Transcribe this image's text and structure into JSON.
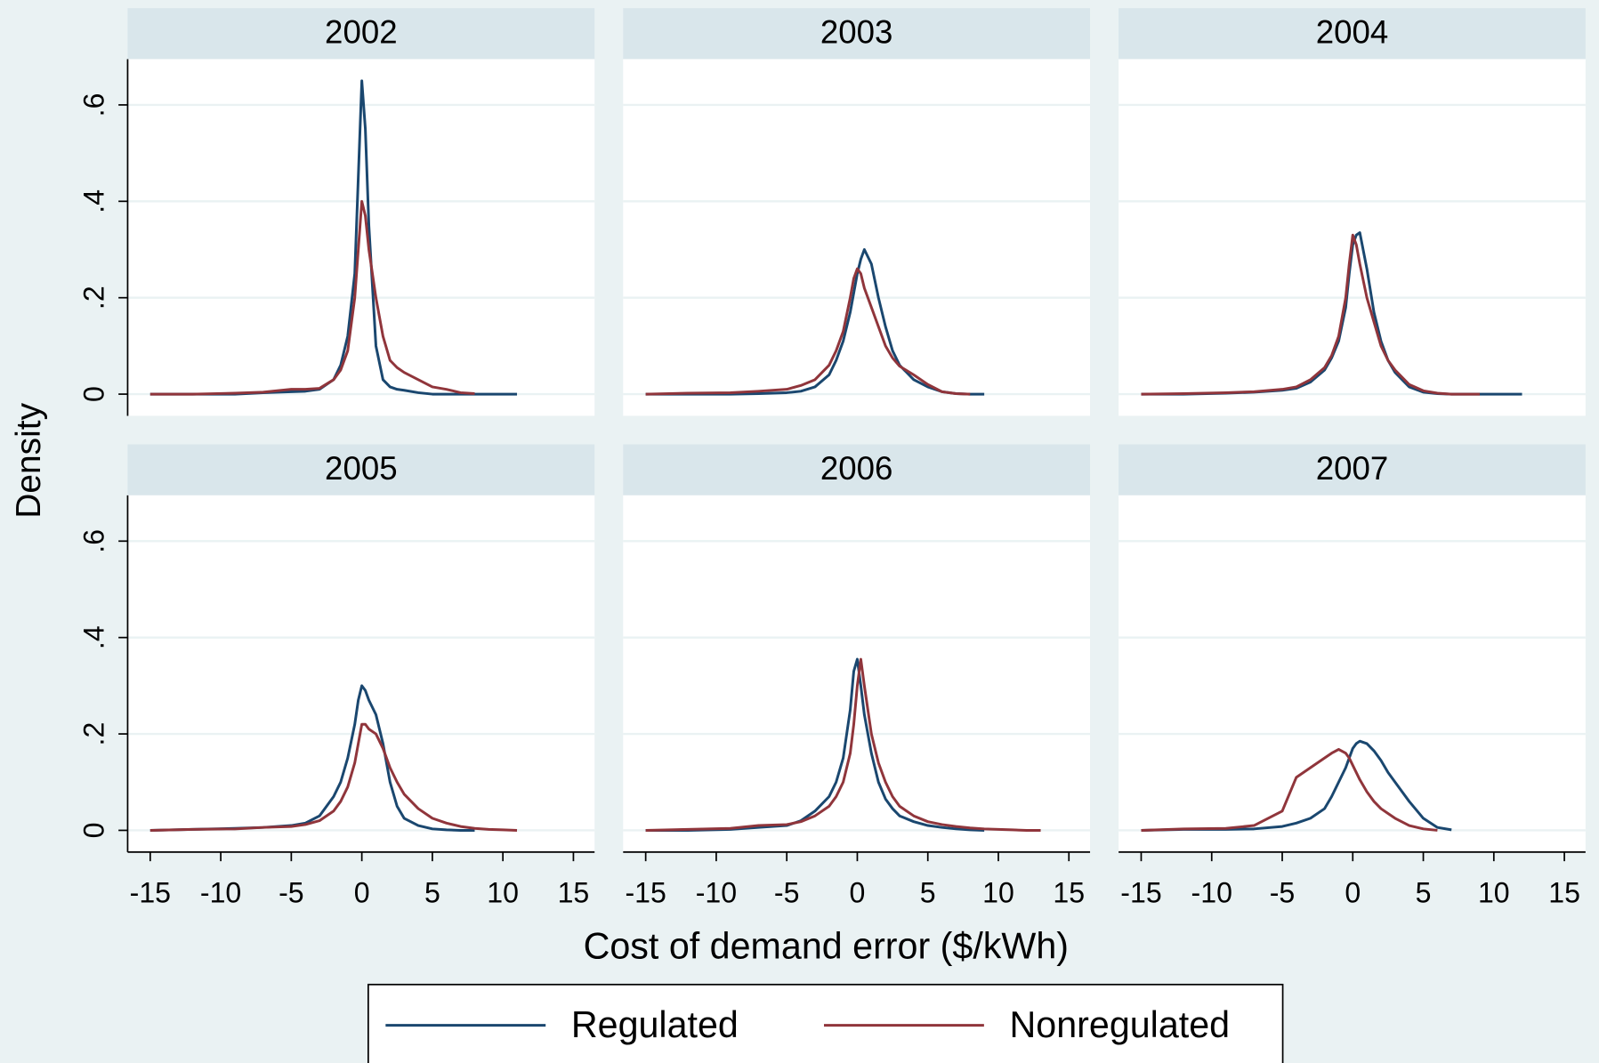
{
  "chart_data": {
    "type": "line",
    "x_label": "Cost of demand error ($/kWh)",
    "y_label": "Density",
    "legend": "bottom",
    "grid": true,
    "xlim": [
      -16.6,
      16.5
    ],
    "ylim": [
      -0.045,
      0.695
    ],
    "xticks": [
      -15,
      -10,
      -5,
      0,
      5,
      10,
      15
    ],
    "yticks": [
      0,
      {
        "value": 0.2,
        "label": ".2"
      },
      {
        "value": 0.4,
        "label": ".4"
      },
      {
        "value": 0.6,
        "label": ".6"
      }
    ],
    "series": [
      {
        "name": "Regulated",
        "color": "#1a476f"
      },
      {
        "name": "Nonregulated",
        "color": "#90353b"
      }
    ],
    "x": [
      -15,
      -12,
      -9,
      -7,
      -5,
      -4,
      -3,
      -2,
      -1.5,
      -1,
      -0.5,
      -0.25,
      0,
      0.25,
      0.5,
      1,
      1.5,
      2,
      2.5,
      3,
      4,
      5,
      6,
      7,
      8,
      9,
      10,
      11,
      12,
      13
    ],
    "panels": [
      {
        "title": "2002",
        "series": [
          {
            "values": [
              0,
              0,
              0,
              0.003,
              0.005,
              0.006,
              0.01,
              0.03,
              0.06,
              0.12,
              0.25,
              0.45,
              0.65,
              0.55,
              0.35,
              0.1,
              0.03,
              0.015,
              0.01,
              0.008,
              0.003,
              0,
              0,
              0,
              0,
              0,
              0,
              0,
              null,
              null
            ]
          },
          {
            "values": [
              0,
              0,
              0.002,
              0.004,
              0.01,
              0.01,
              0.012,
              0.03,
              0.05,
              0.09,
              0.2,
              0.3,
              0.4,
              0.37,
              0.3,
              0.2,
              0.12,
              0.07,
              0.055,
              0.045,
              0.03,
              0.015,
              0.01,
              0.003,
              0.001,
              null,
              null,
              null,
              null,
              null
            ]
          }
        ]
      },
      {
        "title": "2003",
        "series": [
          {
            "values": [
              0,
              0,
              0,
              0.001,
              0.003,
              0.006,
              0.015,
              0.04,
              0.07,
              0.11,
              0.17,
              0.21,
              0.25,
              0.28,
              0.3,
              0.27,
              0.2,
              0.14,
              0.09,
              0.06,
              0.03,
              0.015,
              0.005,
              0.001,
              0,
              0,
              null,
              null,
              null,
              null
            ]
          },
          {
            "values": [
              0,
              0.002,
              0.003,
              0.006,
              0.01,
              0.018,
              0.03,
              0.06,
              0.09,
              0.13,
              0.2,
              0.24,
              0.26,
              0.25,
              0.22,
              0.18,
              0.14,
              0.1,
              0.075,
              0.058,
              0.04,
              0.02,
              0.005,
              0.001,
              0,
              null,
              null,
              null,
              null,
              null
            ]
          }
        ]
      },
      {
        "title": "2004",
        "series": [
          {
            "values": [
              0,
              0,
              0.002,
              0.004,
              0.008,
              0.012,
              0.025,
              0.05,
              0.075,
              0.11,
              0.18,
              0.25,
              0.31,
              0.33,
              0.335,
              0.26,
              0.17,
              0.11,
              0.07,
              0.045,
              0.015,
              0.004,
              0.001,
              0,
              0,
              0,
              0,
              0,
              0,
              null
            ]
          },
          {
            "values": [
              0,
              0.001,
              0.003,
              0.005,
              0.01,
              0.015,
              0.03,
              0.055,
              0.08,
              0.12,
              0.2,
              0.27,
              0.33,
              0.31,
              0.27,
              0.2,
              0.15,
              0.1,
              0.07,
              0.05,
              0.02,
              0.007,
              0.002,
              0,
              0,
              0,
              null,
              null,
              null,
              null
            ]
          }
        ]
      },
      {
        "title": "2005",
        "series": [
          {
            "values": [
              0,
              0.002,
              0.004,
              0.006,
              0.01,
              0.015,
              0.03,
              0.07,
              0.1,
              0.15,
              0.22,
              0.27,
              0.3,
              0.29,
              0.27,
              0.24,
              0.18,
              0.1,
              0.05,
              0.025,
              0.01,
              0.003,
              0.001,
              0,
              0,
              null,
              null,
              null,
              null,
              null
            ]
          },
          {
            "values": [
              0,
              0.002,
              0.003,
              0.006,
              0.008,
              0.012,
              0.02,
              0.04,
              0.06,
              0.09,
              0.14,
              0.18,
              0.22,
              0.22,
              0.21,
              0.2,
              0.17,
              0.13,
              0.1,
              0.075,
              0.045,
              0.025,
              0.015,
              0.008,
              0.004,
              0.002,
              0.001,
              0,
              null,
              null
            ]
          }
        ]
      },
      {
        "title": "2006",
        "series": [
          {
            "values": [
              0,
              0,
              0.002,
              0.006,
              0.01,
              0.02,
              0.04,
              0.07,
              0.1,
              0.15,
              0.25,
              0.33,
              0.355,
              0.3,
              0.24,
              0.16,
              0.1,
              0.065,
              0.045,
              0.03,
              0.018,
              0.01,
              0.006,
              0.003,
              0.001,
              0,
              null,
              null,
              null,
              null
            ]
          },
          {
            "values": [
              0,
              0.002,
              0.004,
              0.01,
              0.012,
              0.018,
              0.03,
              0.05,
              0.07,
              0.1,
              0.16,
              0.22,
              0.3,
              0.355,
              0.3,
              0.2,
              0.14,
              0.1,
              0.07,
              0.05,
              0.03,
              0.018,
              0.012,
              0.008,
              0.005,
              0.003,
              0.002,
              0.001,
              0,
              0
            ]
          }
        ]
      },
      {
        "title": "2007",
        "series": [
          {
            "values": [
              0,
              0.002,
              0.002,
              0.003,
              0.008,
              0.015,
              0.025,
              0.045,
              0.07,
              0.1,
              0.13,
              0.15,
              0.17,
              0.18,
              0.185,
              0.18,
              0.165,
              0.145,
              0.12,
              0.1,
              0.06,
              0.025,
              0.006,
              0.001,
              null,
              null,
              null,
              null,
              null,
              null
            ]
          },
          {
            "values": [
              0,
              0.003,
              0.004,
              0.01,
              0.04,
              0.11,
              0.13,
              0.15,
              0.16,
              0.168,
              0.16,
              0.15,
              0.135,
              0.12,
              0.105,
              0.08,
              0.06,
              0.045,
              0.035,
              0.025,
              0.01,
              0.003,
              0,
              null,
              null,
              null,
              null,
              null,
              null,
              null
            ]
          }
        ]
      }
    ]
  }
}
